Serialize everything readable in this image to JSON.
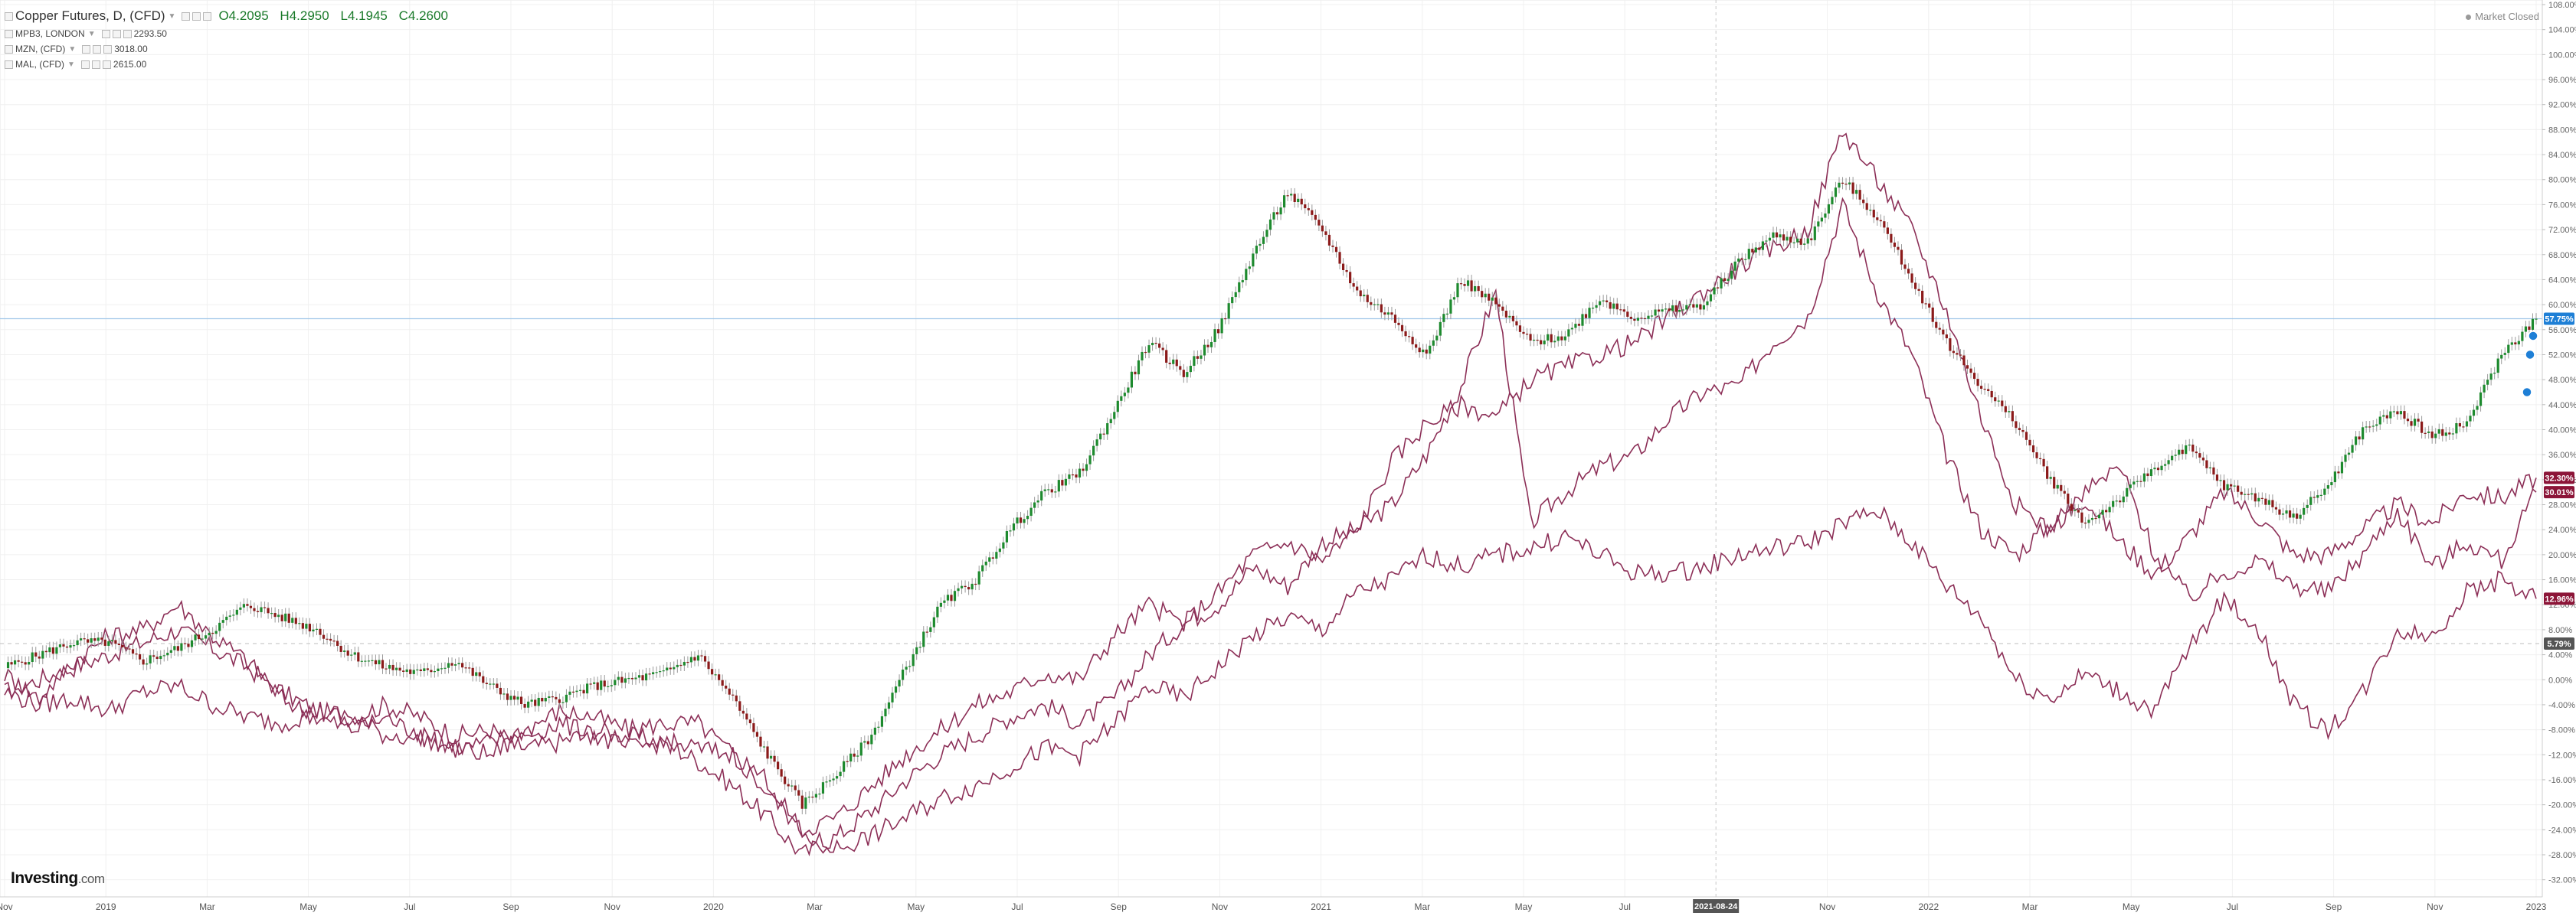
{
  "legend": {
    "main": {
      "title": "Copper Futures, D, (CFD)",
      "open": "O4.2095",
      "high": "H4.2950",
      "low": "L4.1945",
      "close": "C4.2600"
    },
    "compare": [
      {
        "label": "MPB3, LONDON",
        "value": "2293.50"
      },
      {
        "label": "MZN, (CFD)",
        "value": "3018.00"
      },
      {
        "label": "MAL, (CFD)",
        "value": "2615.00"
      }
    ]
  },
  "status": "Market Closed",
  "logo": {
    "name": "Investing",
    "suffix": ".com"
  },
  "colors": {
    "up": "#1d8a2e",
    "down": "#8b1a1a",
    "compare": "#8c2f57",
    "price_line": "#9ec5e8",
    "tag_blue": "#1e7fd6",
    "tag_compare": "#8c1538"
  },
  "chart_data": {
    "type": "line",
    "y_unit": "percent change",
    "ylim": [
      -34,
      108
    ],
    "y_ticks": [
      "108.00%",
      "104.00%",
      "100.00%",
      "96.00%",
      "92.00%",
      "88.00%",
      "84.00%",
      "80.00%",
      "76.00%",
      "72.00%",
      "68.00%",
      "64.00%",
      "60.00%",
      "56.00%",
      "52.00%",
      "48.00%",
      "44.00%",
      "40.00%",
      "36.00%",
      "32.00%",
      "28.00%",
      "24.00%",
      "20.00%",
      "16.00%",
      "12.00%",
      "8.00%",
      "4.00%",
      "0.00%",
      "-4.00%",
      "-8.00%",
      "-12.00%",
      "-16.00%",
      "-20.00%",
      "-24.00%",
      "-28.00%",
      "-32.00%"
    ],
    "x_ticks": [
      "Nov",
      "2019",
      "Mar",
      "May",
      "Jul",
      "Sep",
      "Nov",
      "2020",
      "Mar",
      "May",
      "Jul",
      "Sep",
      "Nov",
      "2021",
      "Mar",
      "May",
      "Jul",
      "2021-08-24",
      "Nov",
      "2022",
      "Mar",
      "May",
      "Jul",
      "Sep",
      "Nov",
      "2023"
    ],
    "x_tick_index": [
      0,
      2,
      4,
      6,
      8,
      10,
      12,
      14,
      16,
      18,
      20,
      22,
      24,
      26,
      28,
      30,
      32,
      33.8,
      36,
      38,
      40,
      42,
      44,
      46,
      48,
      50
    ],
    "crosshair_label": "2021-08-24",
    "price_tags": [
      {
        "value": 57.75,
        "label": "57.75%",
        "series": "Copper Futures"
      },
      {
        "value": 32.3,
        "label": "32.30%",
        "series": "compare"
      },
      {
        "value": 30.01,
        "label": "30.01%",
        "series": "compare"
      },
      {
        "value": 12.96,
        "label": "12.96%",
        "series": "compare"
      },
      {
        "value": 5.79,
        "label": "5.79%",
        "series": "reference"
      }
    ],
    "series": [
      {
        "name": "Copper Futures",
        "style": "candles",
        "values": [
          2,
          4,
          6,
          6,
          3,
          5,
          8,
          12,
          10,
          8,
          4,
          2,
          1,
          3,
          -1,
          -4,
          -3,
          -1,
          0,
          1,
          4,
          -3,
          -12,
          -20,
          -15,
          -9,
          2,
          12,
          16,
          24,
          30,
          33,
          43,
          54,
          49,
          56,
          68,
          78,
          72,
          62,
          58,
          52,
          64,
          60,
          54,
          55,
          61,
          58,
          59,
          60,
          67,
          71,
          70,
          80,
          74,
          64,
          54,
          47,
          41,
          32,
          25,
          29,
          34,
          37,
          31,
          29,
          26,
          31,
          40,
          43,
          39,
          41,
          52,
          57.75
        ]
      },
      {
        "name": "MPB3, LONDON",
        "values": [
          -2,
          0,
          2,
          4,
          6,
          8,
          5,
          2,
          -2,
          -5,
          -6,
          -4,
          -6,
          -9,
          -8,
          -11,
          -10,
          -8,
          -9,
          -10,
          -13,
          -17,
          -22,
          -28,
          -25,
          -21,
          -16,
          -12,
          -9,
          -6,
          -4,
          -7,
          -3,
          4,
          9,
          12,
          18,
          15,
          22,
          24,
          28,
          36,
          47,
          62,
          25,
          30,
          34,
          36,
          42,
          46,
          47,
          54,
          58,
          76,
          62,
          52,
          36,
          24,
          20,
          25,
          29,
          22,
          17,
          23,
          30,
          26,
          20,
          20,
          24,
          28,
          25,
          30,
          29,
          32.3
        ]
      },
      {
        "name": "MZN, (CFD)",
        "values": [
          1,
          -3,
          3,
          7,
          8,
          12,
          7,
          3,
          -3,
          -6,
          -8,
          -6,
          -9,
          -11,
          -10,
          -8,
          -5,
          -6,
          -8,
          -7,
          -7,
          -12,
          -18,
          -24,
          -22,
          -17,
          -12,
          -8,
          -4,
          -2,
          1,
          0,
          7,
          12,
          9,
          14,
          20,
          22,
          19,
          24,
          35,
          41,
          44,
          42,
          48,
          50,
          52,
          54,
          58,
          62,
          66,
          69,
          72,
          88,
          80,
          72,
          59,
          42,
          28,
          24,
          30,
          34,
          20,
          13,
          17,
          19,
          15,
          14,
          20,
          27,
          18,
          22,
          19,
          30.01
        ]
      },
      {
        "name": "MAL, (CFD)",
        "values": [
          -2,
          -4,
          -3,
          -5,
          -2,
          -1,
          -4,
          -6,
          -7,
          -5,
          -6,
          -9,
          -9,
          -11,
          -12,
          -9,
          -7,
          -9,
          -11,
          -10,
          -11,
          -12,
          -16,
          -25,
          -27,
          -25,
          -22,
          -19,
          -17,
          -14,
          -11,
          -12,
          -7,
          -1,
          -3,
          2,
          7,
          10,
          8,
          14,
          16,
          20,
          18,
          20,
          21,
          23,
          20,
          17,
          17,
          18,
          20,
          21,
          22,
          25,
          27,
          22,
          15,
          10,
          0,
          -3,
          1,
          -2,
          -5,
          5,
          13,
          8,
          -4,
          -8,
          -2,
          8,
          7,
          14,
          16,
          12.96
        ]
      }
    ]
  }
}
